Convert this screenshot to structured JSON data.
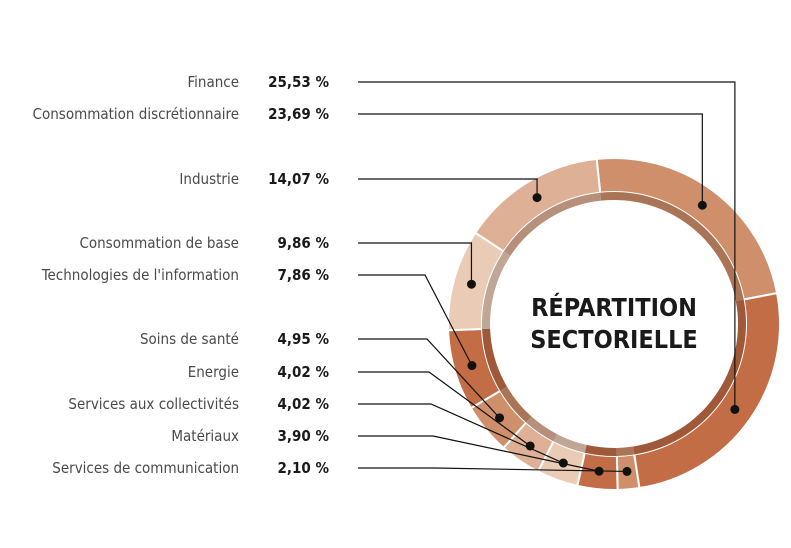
{
  "chart_data": {
    "type": "pie",
    "title": "RÉPARTITION SECTORIELLE",
    "title_lines": [
      "RÉPARTITION",
      "SECTORIELLE"
    ],
    "value_suffix": " %",
    "categories": [
      "Finance",
      "Consommation discrétionnaire",
      "Industrie",
      "Consommation de base",
      "Technologies de l'information",
      "Soins de santé",
      "Energie",
      "Services aux collectivités",
      "Matériaux",
      "Services de communication"
    ],
    "values": [
      25.53,
      23.69,
      14.07,
      9.86,
      7.86,
      4.95,
      4.02,
      4.02,
      3.9,
      2.1
    ],
    "value_labels": [
      "25,53",
      "23,69",
      "14,07",
      "9,86",
      "7,86",
      "4,95",
      "4,02",
      "4,02",
      "3,90",
      "2,10"
    ],
    "slice_order": [
      1,
      0,
      9,
      8,
      7,
      6,
      5,
      4,
      3,
      2
    ],
    "colors": [
      "#c26d45",
      "#cf8f6a",
      "#deb095",
      "#e9cbb6",
      "#c26d45",
      "#cf8f6a",
      "#deb095",
      "#e9cbb6",
      "#c26d45",
      "#cf8f6a"
    ],
    "legend": "left"
  }
}
